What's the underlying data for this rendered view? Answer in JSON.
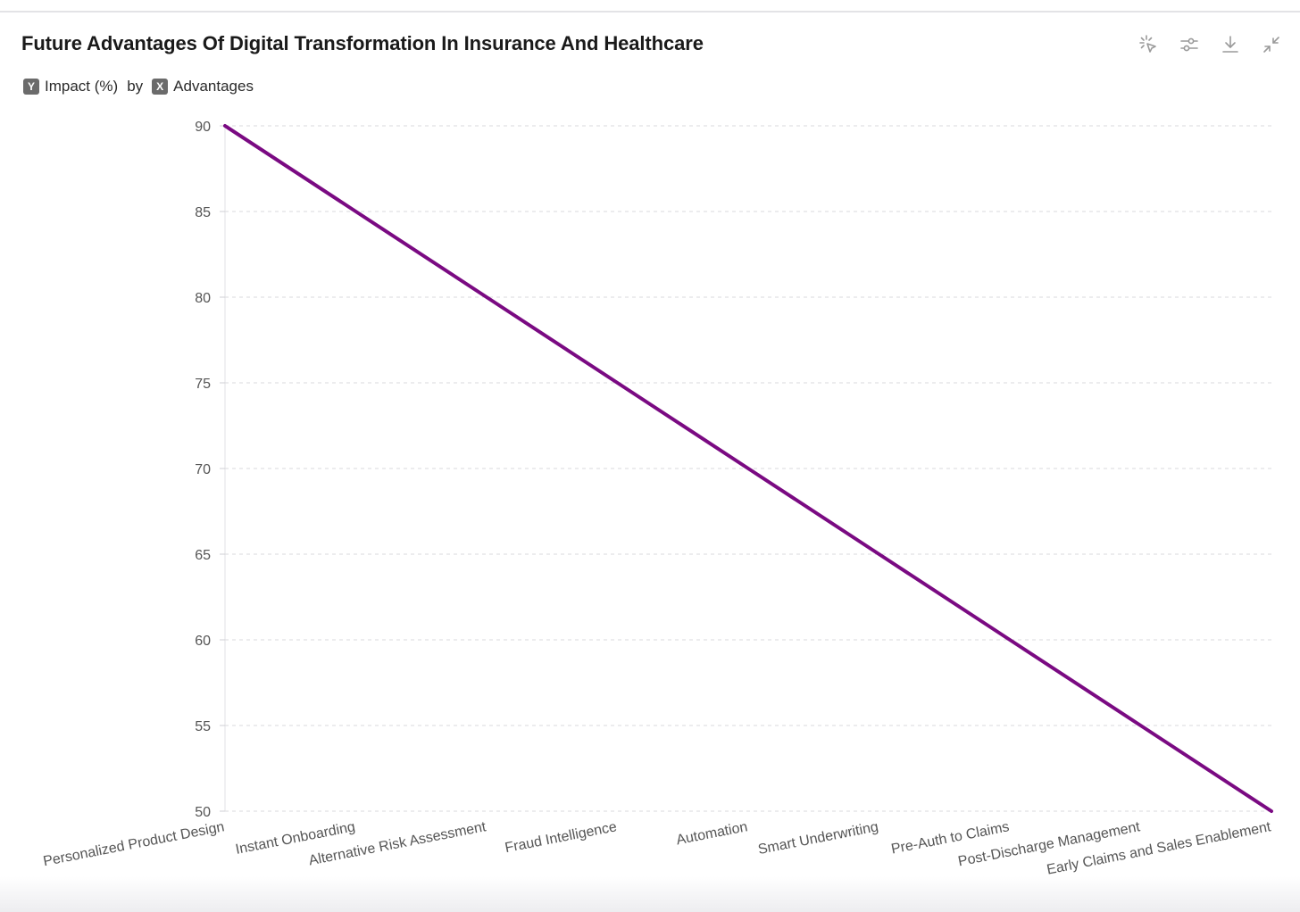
{
  "title": "Future Advantages Of Digital Transformation In Insurance And Healthcare",
  "subtitle": {
    "y_badge": "Y",
    "y_label": "Impact (%)",
    "by": "by",
    "x_badge": "X",
    "x_label": "Advantages"
  },
  "toolbar": {
    "icons": [
      "sparkle-cursor-icon",
      "sliders-icon",
      "download-icon",
      "collapse-icon"
    ]
  },
  "colors": {
    "line": "#7a0a82",
    "grid": "#d9d9dd",
    "axis_text": "#555555"
  },
  "chart_data": {
    "type": "line",
    "title": "Future Advantages Of Digital Transformation In Insurance And Healthcare",
    "xlabel": "Advantages",
    "ylabel": "Impact (%)",
    "categories": [
      "Personalized Product Design",
      "Instant Onboarding",
      "Alternative Risk Assessment",
      "Fraud Intelligence",
      "Automation",
      "Smart Underwriting",
      "Pre-Auth to Claims",
      "Post-Discharge Management",
      "Early Claims and Sales Enablement"
    ],
    "series": [
      {
        "name": "Impact (%)",
        "values": [
          90,
          85,
          80,
          75,
          70,
          65,
          60,
          55,
          50
        ]
      }
    ],
    "ylim": [
      50,
      90
    ],
    "yticks": [
      90,
      85,
      80,
      75,
      70,
      65,
      60,
      55,
      50
    ],
    "grid": true
  }
}
